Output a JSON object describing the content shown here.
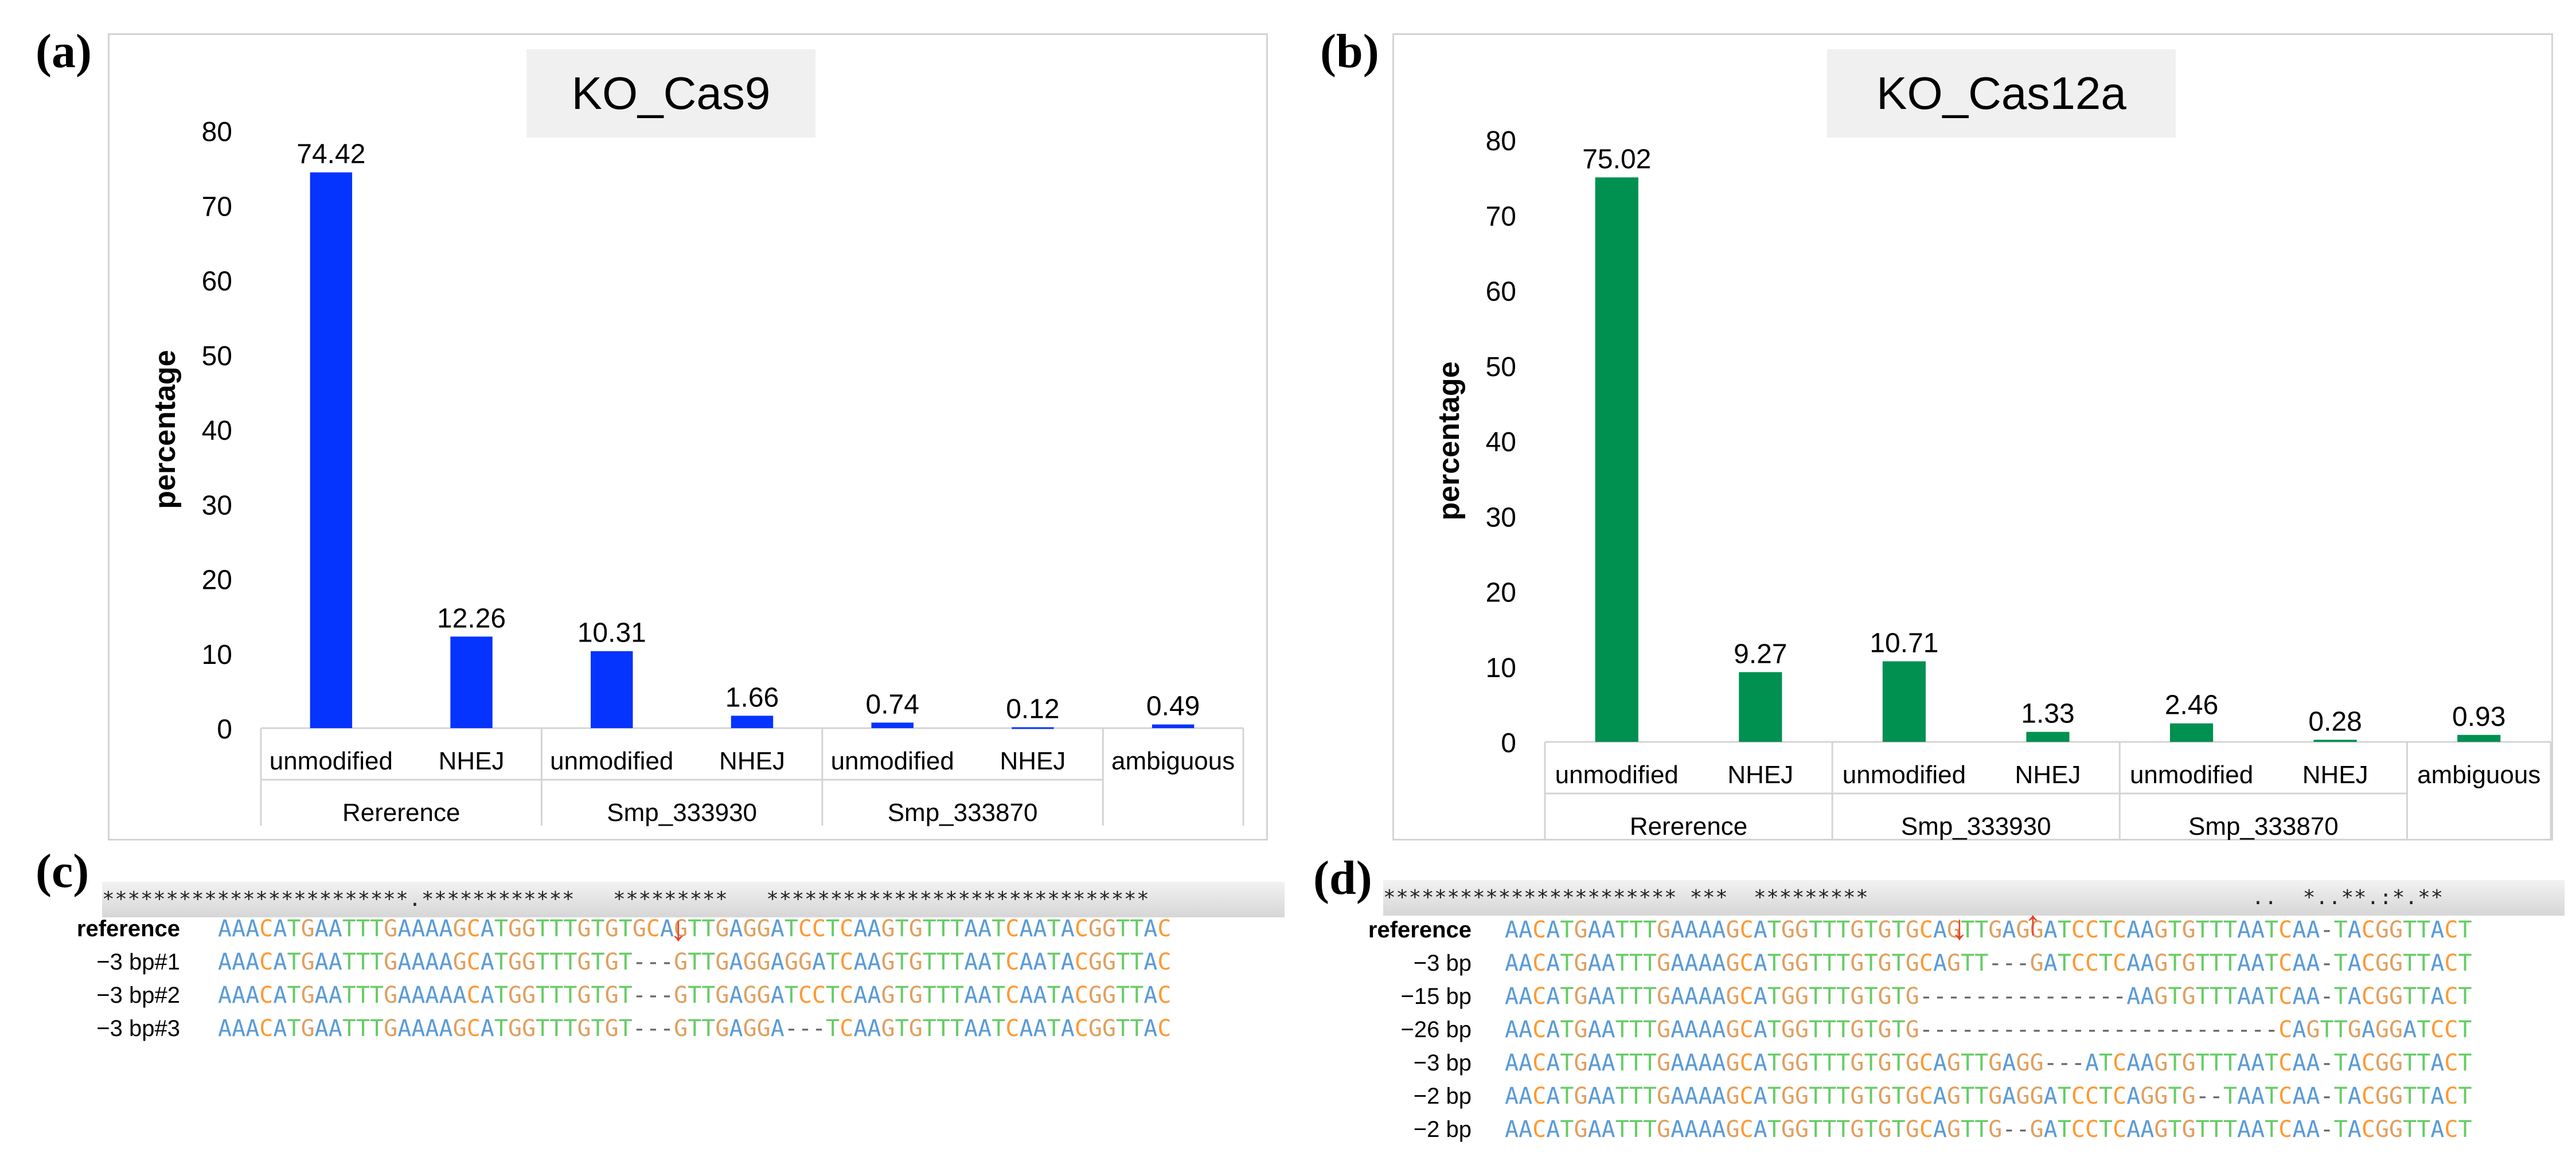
{
  "panels": {
    "a": "(a)",
    "b": "(b)",
    "c": "(c)",
    "d": "(d)"
  },
  "chart_data": [
    {
      "type": "bar",
      "title": "KO_Cas9",
      "ylabel": "percentage",
      "xlabel": "",
      "ylim": [
        0,
        80
      ],
      "yticks": [
        0,
        10,
        20,
        30,
        40,
        50,
        60,
        70,
        80
      ],
      "color": "#0533ff",
      "categories": [
        "unmodified",
        "NHEJ",
        "unmodified",
        "NHEJ",
        "unmodified",
        "NHEJ",
        "ambiguous"
      ],
      "values": [
        74.42,
        12.26,
        10.31,
        1.66,
        0.74,
        0.12,
        0.49
      ],
      "value_labels": [
        "74.42",
        "12.26",
        "10.31",
        "1.66",
        "0.74",
        "0.12",
        "0.49"
      ],
      "groups": [
        {
          "label": "Rererence",
          "span": 2
        },
        {
          "label": "Smp_333930",
          "span": 2
        },
        {
          "label": "Smp_333870",
          "span": 2
        },
        {
          "label": "",
          "span": 1
        }
      ],
      "grid": false
    },
    {
      "type": "bar",
      "title": "KO_Cas12a",
      "ylabel": "percentage",
      "xlabel": "",
      "ylim": [
        0,
        80
      ],
      "yticks": [
        0,
        10,
        20,
        30,
        40,
        50,
        60,
        70,
        80
      ],
      "color": "#009050",
      "categories": [
        "unmodified",
        "NHEJ",
        "unmodified",
        "NHEJ",
        "unmodified",
        "NHEJ",
        "ambiguous"
      ],
      "values": [
        75.02,
        9.27,
        10.71,
        1.33,
        2.46,
        0.28,
        0.93
      ],
      "value_labels": [
        "75.02",
        "9.27",
        "10.71",
        "1.33",
        "2.46",
        "0.28",
        "0.93"
      ],
      "groups": [
        {
          "label": "Rererence",
          "span": 2
        },
        {
          "label": "Smp_333930",
          "span": 2
        },
        {
          "label": "Smp_333870",
          "span": 2
        },
        {
          "label": "",
          "span": 1
        }
      ],
      "grid": false
    }
  ],
  "alignment_c": {
    "consensus": "************************.************   *********   ******************************",
    "rows": [
      {
        "label": "reference",
        "seq": "AAACATGAATTTGAAAAGCATGGTTTGTGTGCAGTTGAGGATCCTCAAGTGTTTAATCAATACGGTTAC"
      },
      {
        "label": "−3 bp#1",
        "seq": "AAACATGAATTTGAAAAGCATGGTTTGTGT---GTTGAGGAGGATCAAGTGTTTAATCAATACGGTTAC"
      },
      {
        "label": "−3 bp#2",
        "seq": "AAACATGAATTTGAAAAACATGGTTTGTGT---GTTGAGGATCCTCAAGTGTTTAATCAATACGGTTAC"
      },
      {
        "label": "−3 bp#3",
        "seq": "AAACATGAATTTGAAAAGCATGGTTTGTGT---GTTGAGGA---TCAAGTGTTTAATCAATACGGTTAC"
      }
    ]
  },
  "alignment_d": {
    "consensus": "*********************** ***  *********                              ..  *..**.:*.**",
    "rows": [
      {
        "label": "reference",
        "seq": "AACATGAATTTGAAAAGCATGGTTTGTGTGCAGTTGAGGATCCTCAAGTGTTTAATCAA-TACGGTTACT"
      },
      {
        "label": "−3 bp",
        "seq": "AACATGAATTTGAAAAGCATGGTTTGTGTGCAGTT---GATCCTCAAGTGTTTAATCAA-TACGGTTACT"
      },
      {
        "label": "−15 bp",
        "seq": "AACATGAATTTGAAAAGCATGGTTTGTGTG---------------AAGTGTTTAATCAA-TACGGTTACT"
      },
      {
        "label": "−26 bp",
        "seq": "AACATGAATTTGAAAAGCATGGTTTGTGTG--------------------------CAGTTGAGGATCCT"
      },
      {
        "label": "−3 bp",
        "seq": "AACATGAATTTGAAAAGCATGGTTTGTGTGCAGTTGAGG---ATCAAGTGTTTAATCAA-TACGGTTACT"
      },
      {
        "label": "−2 bp",
        "seq": "AACATGAATTTGAAAAGCATGGTTTGTGTGCAGTTGAGGATCCTCAGGTG--TAATCAA-TACGGTTACT"
      },
      {
        "label": "−2 bp",
        "seq": "AACATGAATTTGAAAAGCATGGTTTGTGTGCAGTTG--GATCCTCAAGTGTTTAATCAA-TACGGTTACT"
      }
    ]
  }
}
